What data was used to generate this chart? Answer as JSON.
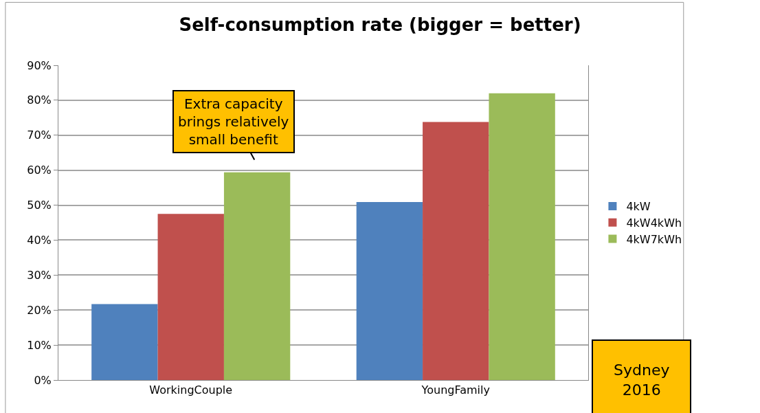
{
  "chart_data": {
    "type": "bar",
    "title": "Self-consumption rate (bigger = better)",
    "categories": [
      "WorkingCouple",
      "YoungFamily"
    ],
    "series": [
      {
        "name": "4kW",
        "color": "#4f81bd",
        "values": [
          21.7,
          50.9
        ]
      },
      {
        "name": "4kW4kWh",
        "color": "#c0504d",
        "values": [
          47.5,
          73.8
        ]
      },
      {
        "name": "4kW7kWh",
        "color": "#9bbb59",
        "values": [
          59.4,
          82.0
        ]
      }
    ],
    "ylim": [
      0,
      90
    ],
    "yticks": [
      {
        "value": 0,
        "label": "0%"
      },
      {
        "value": 10,
        "label": "10%"
      },
      {
        "value": 20,
        "label": "20%"
      },
      {
        "value": 30,
        "label": "30%"
      },
      {
        "value": 40,
        "label": "40%"
      },
      {
        "value": 50,
        "label": "50%"
      },
      {
        "value": 60,
        "label": "60%"
      },
      {
        "value": 70,
        "label": "70%"
      },
      {
        "value": 80,
        "label": "80%"
      },
      {
        "value": 90,
        "label": "90%"
      }
    ],
    "grid": "y",
    "legend": "right",
    "annotations": [
      "Extra capacity\nbrings relatively\nsmall benefit",
      "Sydney\n2016"
    ]
  }
}
